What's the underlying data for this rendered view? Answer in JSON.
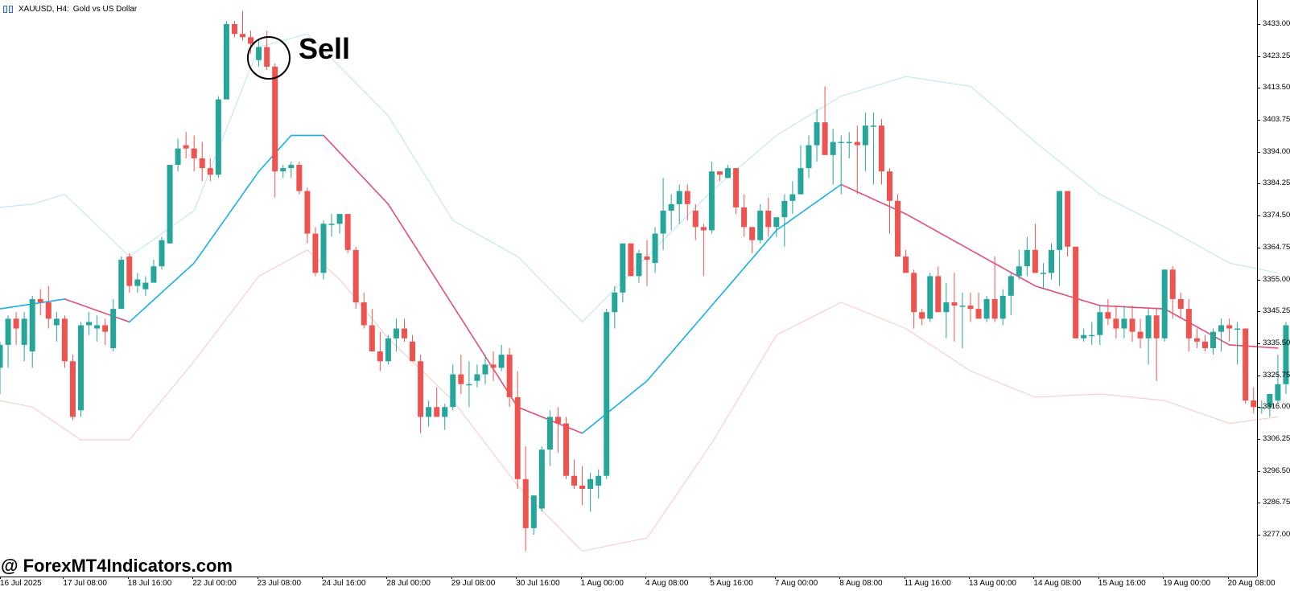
{
  "window": {
    "symbol": "XAUUSD, H4:",
    "description": "Gold vs US Dollar"
  },
  "annotation": {
    "signal_label": "Sell"
  },
  "watermark": {
    "text": "@ ForexMT4Indicators.com"
  },
  "colors": {
    "bull": "#26a69a",
    "bear": "#ef5350",
    "middle_up": "#1ab0e8",
    "middle_down": "#e0507a",
    "upper_band": "#c7e7ee",
    "lower_band": "#f8cfcf"
  },
  "icons": [
    "chart-window-icon"
  ],
  "chart_data": {
    "type": "candlestick",
    "symbol": "XAUUSD",
    "timeframe": "H4",
    "ylim": [
      3268.0,
      3436.0
    ],
    "price_ticks": [
      "3433.00",
      "3423.25",
      "3413.50",
      "3403.75",
      "3394.00",
      "3384.25",
      "3374.50",
      "3364.75",
      "3355.00",
      "3345.25",
      "3335.50",
      "3325.75",
      "3316.00",
      "3306.25",
      "3296.50",
      "3286.75",
      "3277.00"
    ],
    "time_labels": [
      "16 Jul 2025",
      "17 Jul 08:00",
      "18 Jul 16:00",
      "22 Jul 00:00",
      "23 Jul 08:00",
      "24 Jul 16:00",
      "28 Jul 00:00",
      "29 Jul 08:00",
      "30 Jul 16:00",
      "1 Aug 00:00",
      "4 Aug 08:00",
      "5 Aug 16:00",
      "7 Aug 00:00",
      "8 Aug 08:00",
      "11 Aug 16:00",
      "13 Aug 00:00",
      "14 Aug 08:00",
      "15 Aug 16:00",
      "19 Aug 00:00",
      "20 Aug 08:00"
    ],
    "time_label_bar_index": [
      0,
      8,
      16,
      24,
      32,
      40,
      48,
      56,
      64,
      72,
      80,
      88,
      96,
      104,
      112,
      120,
      128,
      136,
      144,
      152
    ],
    "candles_ohlc": [
      [
        3328,
        3336,
        3320,
        3335
      ],
      [
        3335,
        3344,
        3328,
        3343
      ],
      [
        3343,
        3345,
        3335,
        3340
      ],
      [
        3335,
        3345,
        3330,
        3343
      ],
      [
        3333,
        3350,
        3328,
        3349
      ],
      [
        3349,
        3352,
        3344,
        3348
      ],
      [
        3348,
        3353,
        3340,
        3343
      ],
      [
        3341,
        3345,
        3336,
        3343
      ],
      [
        3343,
        3344,
        3328,
        3330
      ],
      [
        3330,
        3332,
        3312,
        3313
      ],
      [
        3315,
        3342,
        3313,
        3341
      ],
      [
        3341,
        3345,
        3338,
        3342
      ],
      [
        3340,
        3344,
        3336,
        3341
      ],
      [
        3341,
        3343,
        3335,
        3339
      ],
      [
        3334,
        3349,
        3333,
        3346
      ],
      [
        3346,
        3362,
        3346,
        3361
      ],
      [
        3362,
        3363,
        3351,
        3353
      ],
      [
        3353,
        3357,
        3351,
        3355
      ],
      [
        3352,
        3356,
        3350,
        3354
      ],
      [
        3354,
        3361,
        3354,
        3359
      ],
      [
        3359,
        3368,
        3358,
        3367
      ],
      [
        3366,
        3390,
        3366,
        3390
      ],
      [
        3390,
        3398,
        3388,
        3395
      ],
      [
        3396,
        3400,
        3392,
        3395
      ],
      [
        3395,
        3399,
        3388,
        3392
      ],
      [
        3392,
        3397,
        3385,
        3389
      ],
      [
        3389,
        3392,
        3385,
        3387
      ],
      [
        3387,
        3411,
        3386,
        3410
      ],
      [
        3410,
        3434,
        3410,
        3433
      ],
      [
        3433,
        3434,
        3429,
        3430
      ],
      [
        3430,
        3437,
        3428,
        3429
      ],
      [
        3429,
        3431,
        3424,
        3427
      ],
      [
        3422,
        3428,
        3420,
        3426
      ],
      [
        3426,
        3431,
        3419,
        3420
      ],
      [
        3420,
        3421,
        3380,
        3388
      ],
      [
        3388,
        3390,
        3386,
        3389
      ],
      [
        3389,
        3391,
        3386,
        3390
      ],
      [
        3390,
        3391,
        3381,
        3382
      ],
      [
        3382,
        3383,
        3366,
        3369
      ],
      [
        3369,
        3371,
        3356,
        3357
      ],
      [
        3357,
        3373,
        3355,
        3372
      ],
      [
        3372,
        3375,
        3368,
        3372
      ],
      [
        3372,
        3375,
        3369,
        3375
      ],
      [
        3375,
        3375,
        3363,
        3364
      ],
      [
        3364,
        3365,
        3346,
        3348
      ],
      [
        3348,
        3351,
        3340,
        3341
      ],
      [
        3341,
        3346,
        3333,
        3333
      ],
      [
        3333,
        3339,
        3327,
        3330
      ],
      [
        3330,
        3338,
        3329,
        3337
      ],
      [
        3337,
        3343,
        3333,
        3340
      ],
      [
        3340,
        3343,
        3336,
        3337
      ],
      [
        3336,
        3338,
        3330,
        3330
      ],
      [
        3330,
        3332,
        3308,
        3313
      ],
      [
        3313,
        3318,
        3310,
        3316
      ],
      [
        3316,
        3322,
        3313,
        3313
      ],
      [
        3313,
        3317,
        3309,
        3316
      ],
      [
        3316,
        3329,
        3315,
        3326
      ],
      [
        3326,
        3332,
        3320,
        3323
      ],
      [
        3323,
        3330,
        3316,
        3323
      ],
      [
        3324,
        3329,
        3322,
        3326
      ],
      [
        3326,
        3332,
        3323,
        3329
      ],
      [
        3329,
        3333,
        3324,
        3328
      ],
      [
        3328,
        3335,
        3327,
        3332
      ],
      [
        3332,
        3334,
        3316,
        3319
      ],
      [
        3319,
        3327,
        3291,
        3294
      ],
      [
        3294,
        3304,
        3272,
        3279
      ],
      [
        3279,
        3289,
        3277,
        3289
      ],
      [
        3285,
        3304,
        3284,
        3303
      ],
      [
        3303,
        3315,
        3298,
        3313
      ],
      [
        3313,
        3316,
        3302,
        3311
      ],
      [
        3311,
        3313,
        3294,
        3295
      ],
      [
        3295,
        3300,
        3291,
        3292
      ],
      [
        3292,
        3298,
        3286,
        3291
      ],
      [
        3291,
        3296,
        3284,
        3294
      ],
      [
        3292,
        3297,
        3288,
        3295
      ],
      [
        3295,
        3346,
        3294,
        3345
      ],
      [
        3345,
        3353,
        3340,
        3351
      ],
      [
        3351,
        3366,
        3348,
        3366
      ],
      [
        3366,
        3366,
        3356,
        3356
      ],
      [
        3356,
        3364,
        3354,
        3363
      ],
      [
        3362,
        3367,
        3353,
        3361
      ],
      [
        3360,
        3371,
        3357,
        3369
      ],
      [
        3369,
        3386,
        3364,
        3376
      ],
      [
        3376,
        3381,
        3370,
        3378
      ],
      [
        3378,
        3384,
        3372,
        3382
      ],
      [
        3382,
        3384,
        3373,
        3378
      ],
      [
        3376,
        3378,
        3367,
        3371
      ],
      [
        3371,
        3372,
        3356,
        3370
      ],
      [
        3370,
        3391,
        3369,
        3388
      ],
      [
        3388,
        3388,
        3385,
        3387
      ],
      [
        3386,
        3390,
        3386,
        3389
      ],
      [
        3389,
        3389,
        3375,
        3377
      ],
      [
        3377,
        3381,
        3368,
        3371
      ],
      [
        3371,
        3371,
        3363,
        3367
      ],
      [
        3367,
        3378,
        3366,
        3376
      ],
      [
        3376,
        3380,
        3368,
        3371
      ],
      [
        3371,
        3374,
        3368,
        3374
      ],
      [
        3374,
        3381,
        3365,
        3379
      ],
      [
        3379,
        3385,
        3375,
        3381
      ],
      [
        3381,
        3396,
        3381,
        3389
      ],
      [
        3389,
        3399,
        3386,
        3396
      ],
      [
        3396,
        3407,
        3391,
        3403
      ],
      [
        3403,
        3414,
        3394,
        3393
      ],
      [
        3393,
        3401,
        3384,
        3397
      ],
      [
        3397,
        3399,
        3381,
        3397
      ],
      [
        3397,
        3400,
        3392,
        3397
      ],
      [
        3397,
        3402,
        3381,
        3396
      ],
      [
        3396,
        3406,
        3388,
        3402
      ],
      [
        3402,
        3406,
        3384,
        3402
      ],
      [
        3402,
        3404,
        3384,
        3388
      ],
      [
        3388,
        3389,
        3369,
        3379
      ],
      [
        3379,
        3381,
        3362,
        3362
      ],
      [
        3362,
        3364,
        3357,
        3357
      ],
      [
        3357,
        3358,
        3340,
        3345
      ],
      [
        3345,
        3346,
        3341,
        3343
      ],
      [
        3343,
        3357,
        3342,
        3356
      ],
      [
        3356,
        3359,
        3345,
        3345
      ],
      [
        3345,
        3354,
        3337,
        3348
      ],
      [
        3348,
        3357,
        3336,
        3347
      ],
      [
        3347,
        3351,
        3334,
        3347
      ],
      [
        3347,
        3351,
        3342,
        3346
      ],
      [
        3346,
        3351,
        3343,
        3343
      ],
      [
        3343,
        3350,
        3342,
        3349
      ],
      [
        3349,
        3362,
        3342,
        3343
      ],
      [
        3343,
        3352,
        3341,
        3350
      ],
      [
        3350,
        3357,
        3344,
        3356
      ],
      [
        3356,
        3364,
        3355,
        3359
      ],
      [
        3359,
        3368,
        3356,
        3364
      ],
      [
        3364,
        3372,
        3357,
        3357
      ],
      [
        3357,
        3360,
        3352,
        3357
      ],
      [
        3357,
        3366,
        3355,
        3364
      ],
      [
        3364,
        3382,
        3353,
        3382
      ],
      [
        3382,
        3382,
        3362,
        3365
      ],
      [
        3365,
        3365,
        3337,
        3337
      ],
      [
        3337,
        3340,
        3336,
        3338
      ],
      [
        3338,
        3342,
        3335,
        3338
      ],
      [
        3338,
        3347,
        3335,
        3345
      ],
      [
        3345,
        3349,
        3341,
        3343
      ],
      [
        3343,
        3347,
        3337,
        3340
      ],
      [
        3340,
        3347,
        3337,
        3343
      ],
      [
        3343,
        3347,
        3336,
        3339
      ],
      [
        3339,
        3343,
        3334,
        3337
      ],
      [
        3337,
        3346,
        3329,
        3344
      ],
      [
        3344,
        3346,
        3324,
        3337
      ],
      [
        3337,
        3358,
        3336,
        3358
      ],
      [
        3358,
        3359,
        3343,
        3349
      ],
      [
        3349,
        3351,
        3343,
        3346
      ],
      [
        3346,
        3349,
        3333,
        3337
      ],
      [
        3337,
        3340,
        3334,
        3336
      ],
      [
        3336,
        3338,
        3333,
        3334
      ],
      [
        3334,
        3340,
        3332,
        3339
      ],
      [
        3339,
        3343,
        3333,
        3341
      ],
      [
        3341,
        3343,
        3336,
        3340
      ],
      [
        3340,
        3342,
        3329,
        3340
      ],
      [
        3340,
        3340,
        3317,
        3318
      ],
      [
        3318,
        3322,
        3314,
        3316
      ],
      [
        3316,
        3318,
        3314,
        3316
      ],
      [
        3316,
        3320,
        3313,
        3320
      ],
      [
        3318,
        3332,
        3317,
        3323
      ],
      [
        3323,
        3342,
        3320,
        3341
      ],
      [
        3341,
        3350,
        3340,
        3345
      ]
    ],
    "indicator": {
      "type": "bands",
      "middle_line_knots": [
        [
          0,
          3346
        ],
        [
          8,
          3349
        ],
        [
          16,
          3342
        ],
        [
          24,
          3360
        ],
        [
          32,
          3388
        ],
        [
          36,
          3399
        ],
        [
          40,
          3399
        ],
        [
          48,
          3378
        ],
        [
          56,
          3347
        ],
        [
          64,
          3316
        ],
        [
          72,
          3308
        ],
        [
          80,
          3324
        ],
        [
          88,
          3347
        ],
        [
          96,
          3370
        ],
        [
          104,
          3384
        ],
        [
          112,
          3375
        ],
        [
          120,
          3364
        ],
        [
          128,
          3353
        ],
        [
          136,
          3347
        ],
        [
          144,
          3346
        ],
        [
          152,
          3335
        ],
        [
          158,
          3334
        ]
      ],
      "upper_band_knots": [
        [
          0,
          3377
        ],
        [
          4,
          3378
        ],
        [
          8,
          3381
        ],
        [
          16,
          3362
        ],
        [
          24,
          3376
        ],
        [
          32,
          3426
        ],
        [
          38,
          3430
        ],
        [
          42,
          3420
        ],
        [
          48,
          3405
        ],
        [
          56,
          3373
        ],
        [
          64,
          3362
        ],
        [
          72,
          3342
        ],
        [
          80,
          3362
        ],
        [
          88,
          3382
        ],
        [
          96,
          3399
        ],
        [
          104,
          3411
        ],
        [
          112,
          3417
        ],
        [
          120,
          3414
        ],
        [
          128,
          3397
        ],
        [
          136,
          3381
        ],
        [
          144,
          3371
        ],
        [
          152,
          3360
        ],
        [
          158,
          3357
        ]
      ],
      "lower_band_knots": [
        [
          0,
          3318
        ],
        [
          4,
          3316
        ],
        [
          10,
          3306
        ],
        [
          16,
          3306
        ],
        [
          24,
          3330
        ],
        [
          32,
          3356
        ],
        [
          38,
          3364
        ],
        [
          42,
          3355
        ],
        [
          48,
          3337
        ],
        [
          56,
          3318
        ],
        [
          64,
          3292
        ],
        [
          72,
          3272
        ],
        [
          80,
          3276
        ],
        [
          88,
          3305
        ],
        [
          96,
          3338
        ],
        [
          104,
          3348
        ],
        [
          112,
          3340
        ],
        [
          120,
          3327
        ],
        [
          128,
          3319
        ],
        [
          136,
          3320
        ],
        [
          144,
          3318
        ],
        [
          152,
          3311
        ],
        [
          158,
          3313
        ]
      ]
    }
  }
}
